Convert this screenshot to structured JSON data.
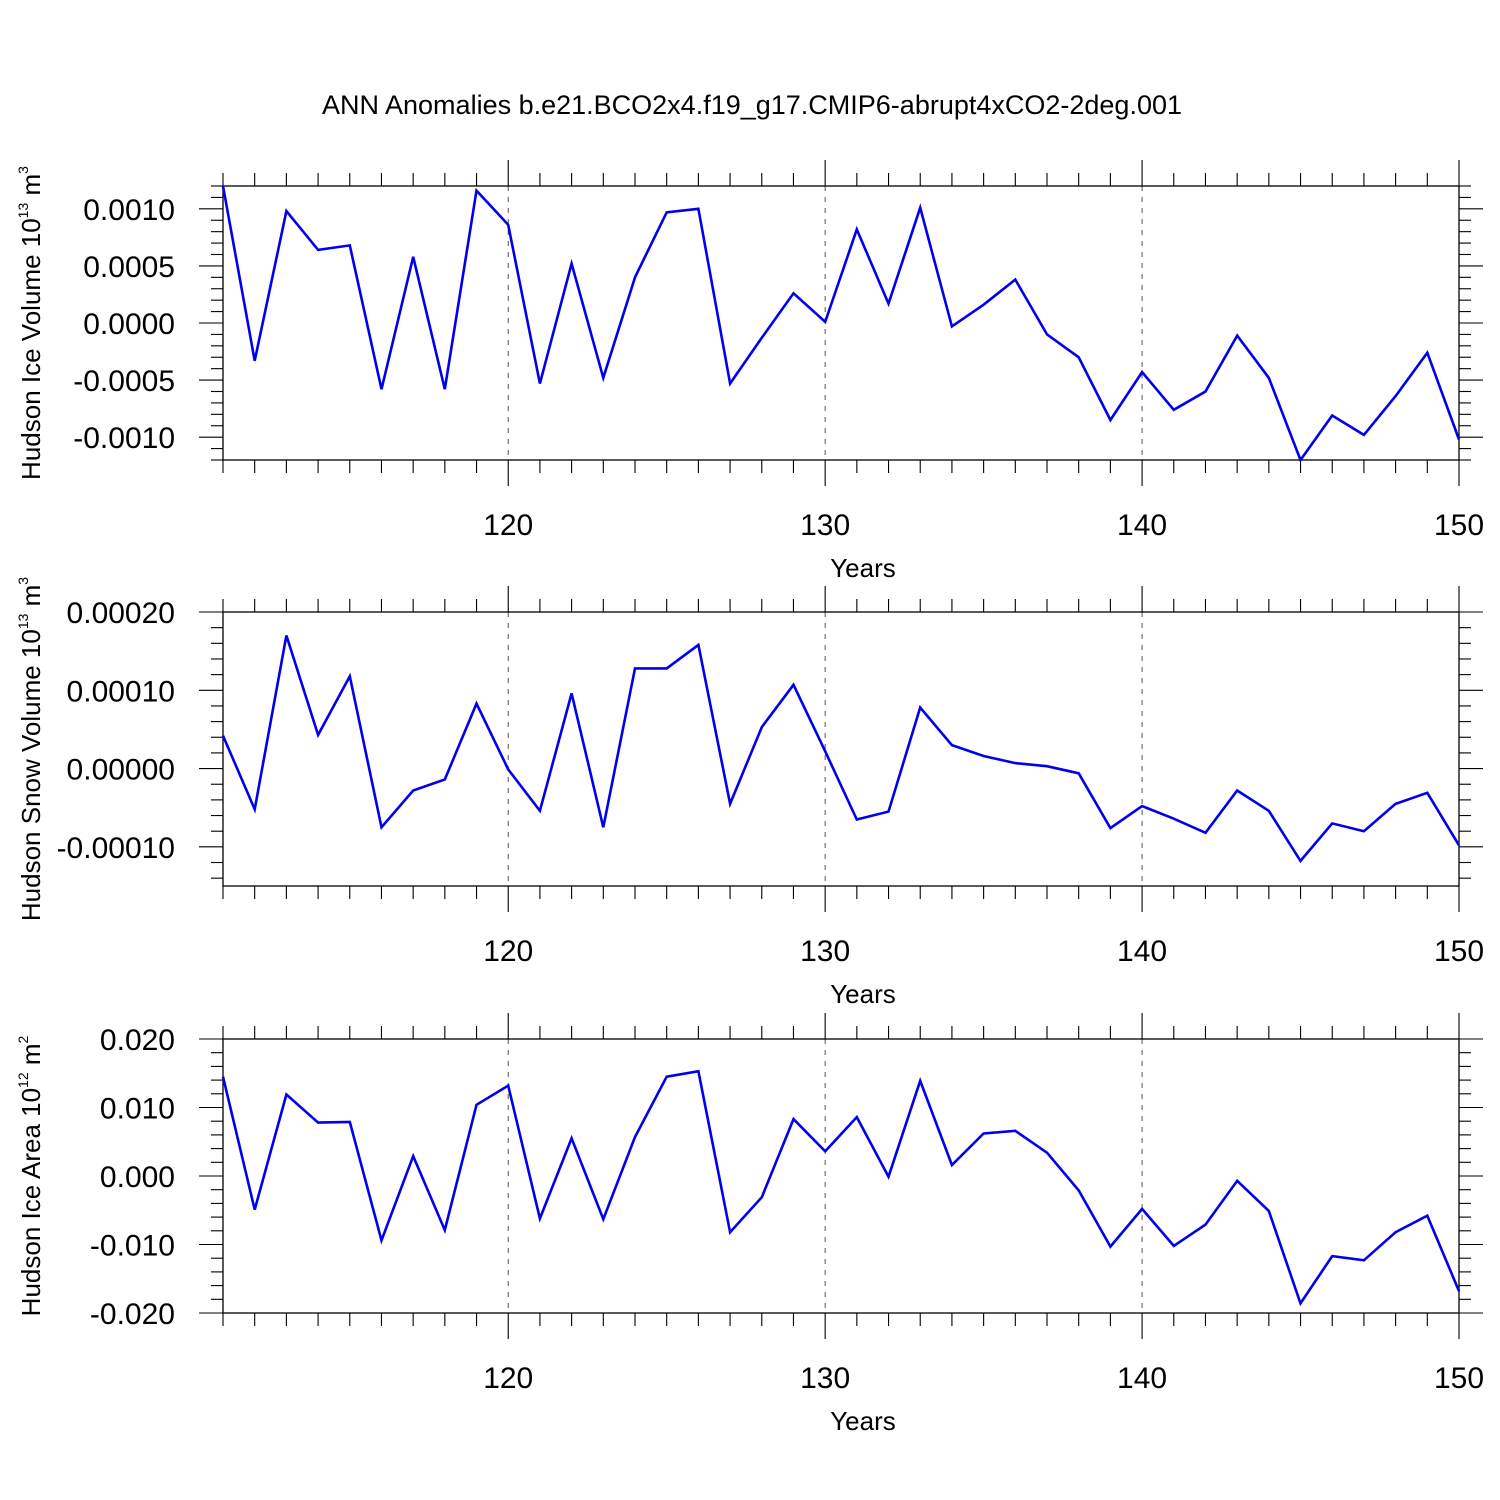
{
  "title": "ANN Anomalies b.e21.BCO2x4.f19_g17.CMIP6-abrupt4xCO2-2deg.001",
  "line_color": "#0000ee",
  "chart_data": [
    {
      "type": "line",
      "ylabel_main": "Hudson Ice Volume 10",
      "ylabel_exp": "13",
      "ylabel_unit": " m",
      "ylabel_unit_exp": "3",
      "xlabel": "Years",
      "xlim": [
        111,
        150
      ],
      "ylim": [
        -0.0012,
        0.0012
      ],
      "xticks": [
        120,
        130,
        140,
        150
      ],
      "xtick_labels": [
        "120",
        "130",
        "140",
        "150"
      ],
      "yticks": [
        0.001,
        0.0005,
        0.0,
        -0.0005,
        -0.001
      ],
      "ytick_labels": [
        "0.0010",
        "0.0005",
        "0.0000",
        "-0.0005",
        "-0.0010"
      ],
      "y_minor_step": 0.0001,
      "grid_x": true,
      "x": [
        111,
        112,
        113,
        114,
        115,
        116,
        117,
        118,
        119,
        120,
        121,
        122,
        123,
        124,
        125,
        126,
        127,
        128,
        129,
        130,
        131,
        132,
        133,
        134,
        135,
        136,
        137,
        138,
        139,
        140,
        141,
        142,
        143,
        144,
        145,
        146,
        147,
        148,
        149,
        150
      ],
      "values": [
        0.0012,
        -0.00033,
        0.00098,
        0.00064,
        0.00068,
        -0.00058,
        0.00058,
        -0.00058,
        0.00116,
        0.00086,
        -0.00053,
        0.00052,
        -0.00048,
        0.0004,
        0.00097,
        0.001,
        -0.00053,
        -0.00013,
        0.00026,
        1e-05,
        0.00082,
        0.00017,
        0.00101,
        -3e-05,
        0.00016,
        0.00038,
        -0.0001,
        -0.0003,
        -0.00085,
        -0.00043,
        -0.00076,
        -0.0006,
        -0.00011,
        -0.00048,
        -0.0012,
        -0.00081,
        -0.00098,
        -0.00064,
        -0.00026,
        -0.00102
      ]
    },
    {
      "type": "line",
      "ylabel_main": "Hudson Snow Volume 10",
      "ylabel_exp": "13",
      "ylabel_unit": " m",
      "ylabel_unit_exp": "3",
      "xlabel": "Years",
      "xlim": [
        111,
        150
      ],
      "ylim": [
        -0.00015,
        0.0002
      ],
      "xticks": [
        120,
        130,
        140,
        150
      ],
      "xtick_labels": [
        "120",
        "130",
        "140",
        "150"
      ],
      "yticks": [
        0.0002,
        0.0001,
        0.0,
        -0.0001
      ],
      "ytick_labels": [
        "0.00020",
        "0.00010",
        "0.00000",
        "-0.00010"
      ],
      "y_minor_step": 2e-05,
      "grid_x": true,
      "x": [
        111,
        112,
        113,
        114,
        115,
        116,
        117,
        118,
        119,
        120,
        121,
        122,
        123,
        124,
        125,
        126,
        127,
        128,
        129,
        130,
        131,
        132,
        133,
        134,
        135,
        136,
        137,
        138,
        139,
        140,
        141,
        142,
        143,
        144,
        145,
        146,
        147,
        148,
        149,
        150
      ],
      "values": [
        4.2e-05,
        -5.2e-05,
        0.00017,
        4.3e-05,
        0.000118,
        -7.5e-05,
        -2.8e-05,
        -1.4e-05,
        8.3e-05,
        -1e-06,
        -5.4e-05,
        9.6e-05,
        -7.5e-05,
        0.000128,
        0.000128,
        0.000158,
        -4.5e-05,
        5.3e-05,
        0.000107,
        2.2e-05,
        -6.5e-05,
        -5.5e-05,
        7.8e-05,
        3e-05,
        1.6e-05,
        7e-06,
        3e-06,
        -6e-06,
        -7.6e-05,
        -4.8e-05,
        -6.4e-05,
        -8.2e-05,
        -2.8e-05,
        -5.4e-05,
        -0.000118,
        -7e-05,
        -8e-05,
        -4.5e-05,
        -3.1e-05,
        -9.8e-05
      ]
    },
    {
      "type": "line",
      "ylabel_main": "Hudson Ice Area 10",
      "ylabel_exp": "12",
      "ylabel_unit": " m",
      "ylabel_unit_exp": "2",
      "xlabel": "Years",
      "xlim": [
        111,
        150
      ],
      "ylim": [
        -0.02,
        0.02
      ],
      "xticks": [
        120,
        130,
        140,
        150
      ],
      "xtick_labels": [
        "120",
        "130",
        "140",
        "150"
      ],
      "yticks": [
        0.02,
        0.01,
        0.0,
        -0.01,
        -0.02
      ],
      "ytick_labels": [
        "0.020",
        "0.010",
        "0.000",
        "-0.010",
        "-0.020"
      ],
      "y_minor_step": 0.002,
      "grid_x": true,
      "x": [
        111,
        112,
        113,
        114,
        115,
        116,
        117,
        118,
        119,
        120,
        121,
        122,
        123,
        124,
        125,
        126,
        127,
        128,
        129,
        130,
        131,
        132,
        133,
        134,
        135,
        136,
        137,
        138,
        139,
        140,
        141,
        142,
        143,
        144,
        145,
        146,
        147,
        148,
        149,
        150
      ],
      "values": [
        0.0145,
        -0.0049,
        0.0119,
        0.0078,
        0.0079,
        -0.0094,
        0.0029,
        -0.0079,
        0.0104,
        0.0132,
        -0.0062,
        0.0055,
        -0.0063,
        0.0057,
        0.0145,
        0.0153,
        -0.0082,
        -0.0031,
        0.0083,
        0.0036,
        0.0086,
        -0.0001,
        0.0139,
        0.0016,
        0.0062,
        0.0066,
        0.0034,
        -0.0021,
        -0.0103,
        -0.0048,
        -0.0102,
        -0.0071,
        -0.0007,
        -0.0051,
        -0.0186,
        -0.0117,
        -0.0123,
        -0.0082,
        -0.0058,
        -0.0168
      ]
    }
  ]
}
